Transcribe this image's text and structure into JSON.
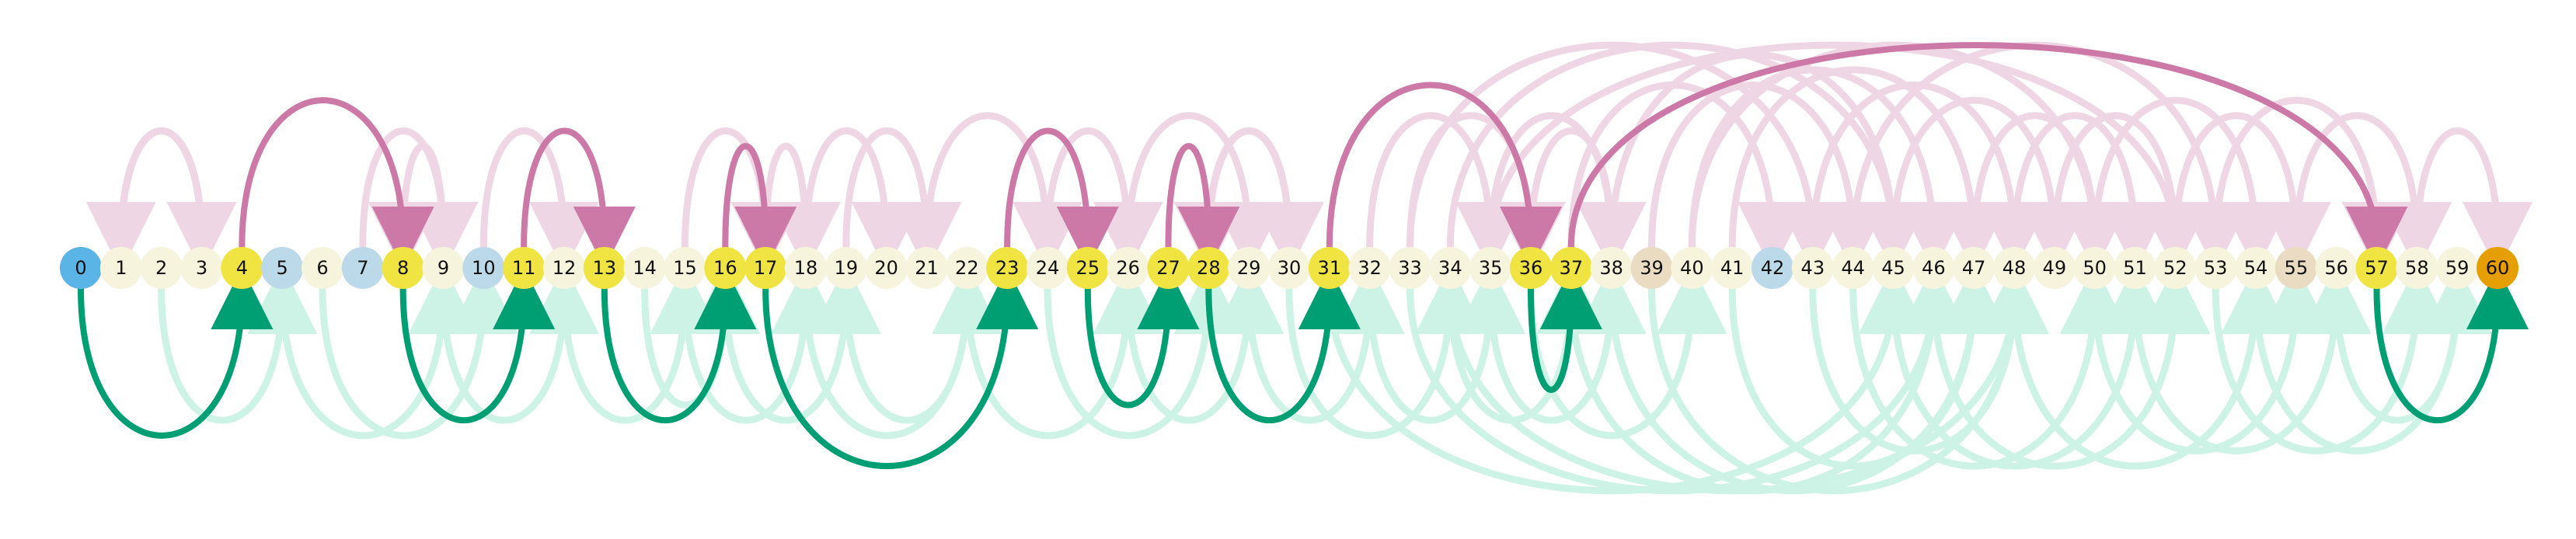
{
  "diagram": {
    "type": "arc-diagram",
    "nodes": [
      "0",
      "1",
      "2",
      "3",
      "4",
      "5",
      "6",
      "7",
      "8",
      "9",
      "10",
      "11",
      "12",
      "13",
      "14",
      "15",
      "16",
      "17",
      "18",
      "19",
      "20",
      "21",
      "22",
      "23",
      "24",
      "25",
      "26",
      "27",
      "28",
      "29",
      "30",
      "31",
      "32",
      "33",
      "34",
      "35",
      "36",
      "37",
      "38",
      "39",
      "40",
      "41",
      "42",
      "43",
      "44",
      "45",
      "46",
      "47",
      "48",
      "49",
      "50",
      "51",
      "52",
      "53",
      "54",
      "55",
      "56",
      "57",
      "58",
      "59",
      "60"
    ],
    "node_colors": {
      "default": "#f6f4dc",
      "start": "#5ab4e5",
      "end": "#e69f00",
      "path": "#f0e442",
      "light_blue": "#bcd9e9",
      "tan": "#eadcc2"
    },
    "node_categories": {
      "start": [
        "0"
      ],
      "end": [
        "60"
      ],
      "path": [
        "4",
        "8",
        "11",
        "13",
        "16",
        "17",
        "23",
        "25",
        "27",
        "28",
        "31",
        "36",
        "37",
        "57"
      ],
      "light_blue": [
        "5",
        "7",
        "10",
        "42"
      ],
      "tan": [
        "39",
        "55"
      ]
    },
    "edge_colors": {
      "forward_above": "#cc79a7",
      "forward_below": "#009e73",
      "faint_pink": "#efd6e5",
      "faint_green": "#cdf3e6"
    },
    "highlighted_edges_above": [
      [
        "4",
        "8"
      ],
      [
        "11",
        "13"
      ],
      [
        "16",
        "17"
      ],
      [
        "23",
        "25"
      ],
      [
        "27",
        "28"
      ],
      [
        "31",
        "36"
      ],
      [
        "37",
        "57"
      ]
    ],
    "highlighted_edges_below": [
      [
        "0",
        "4"
      ],
      [
        "8",
        "11"
      ],
      [
        "13",
        "16"
      ],
      [
        "17",
        "23"
      ],
      [
        "25",
        "27"
      ],
      [
        "28",
        "31"
      ],
      [
        "36",
        "37"
      ],
      [
        "57",
        "60"
      ]
    ],
    "faint_edges_above": [
      [
        "1",
        "3"
      ],
      [
        "3",
        "1"
      ],
      [
        "7",
        "9"
      ],
      [
        "9",
        "8"
      ],
      [
        "10",
        "12"
      ],
      [
        "15",
        "17"
      ],
      [
        "17",
        "18"
      ],
      [
        "18",
        "20"
      ],
      [
        "19",
        "21"
      ],
      [
        "21",
        "24"
      ],
      [
        "24",
        "26"
      ],
      [
        "26",
        "29"
      ],
      [
        "28",
        "30"
      ],
      [
        "30",
        "28"
      ],
      [
        "32",
        "35"
      ],
      [
        "33",
        "36"
      ],
      [
        "35",
        "38"
      ],
      [
        "36",
        "38"
      ],
      [
        "37",
        "42"
      ],
      [
        "39",
        "44"
      ],
      [
        "38",
        "45"
      ],
      [
        "40",
        "46"
      ],
      [
        "41",
        "47"
      ],
      [
        "43",
        "48"
      ],
      [
        "45",
        "49"
      ],
      [
        "47",
        "50"
      ],
      [
        "48",
        "51"
      ],
      [
        "49",
        "52"
      ],
      [
        "50",
        "54"
      ],
      [
        "52",
        "55"
      ],
      [
        "53",
        "57"
      ],
      [
        "55",
        "58"
      ],
      [
        "58",
        "60"
      ],
      [
        "33",
        "43"
      ],
      [
        "34",
        "45"
      ],
      [
        "35",
        "52"
      ],
      [
        "40",
        "50"
      ],
      [
        "44",
        "53"
      ]
    ],
    "faint_edges_below": [
      [
        "2",
        "5"
      ],
      [
        "5",
        "9"
      ],
      [
        "6",
        "10"
      ],
      [
        "9",
        "12"
      ],
      [
        "12",
        "15"
      ],
      [
        "14",
        "16"
      ],
      [
        "15",
        "18"
      ],
      [
        "16",
        "19"
      ],
      [
        "18",
        "22"
      ],
      [
        "19",
        "22"
      ],
      [
        "22",
        "26"
      ],
      [
        "24",
        "28"
      ],
      [
        "26",
        "29"
      ],
      [
        "29",
        "32"
      ],
      [
        "30",
        "34"
      ],
      [
        "32",
        "35"
      ],
      [
        "34",
        "37"
      ],
      [
        "35",
        "38"
      ],
      [
        "36",
        "40"
      ],
      [
        "37",
        "46"
      ],
      [
        "38",
        "47"
      ],
      [
        "39",
        "48"
      ],
      [
        "41",
        "47"
      ],
      [
        "43",
        "48"
      ],
      [
        "44",
        "50"
      ],
      [
        "45",
        "51"
      ],
      [
        "46",
        "52"
      ],
      [
        "48",
        "54"
      ],
      [
        "50",
        "55"
      ],
      [
        "51",
        "56"
      ],
      [
        "53",
        "58"
      ],
      [
        "54",
        "59"
      ],
      [
        "56",
        "59"
      ],
      [
        "33",
        "46"
      ],
      [
        "34",
        "48"
      ],
      [
        "31",
        "45"
      ]
    ]
  }
}
